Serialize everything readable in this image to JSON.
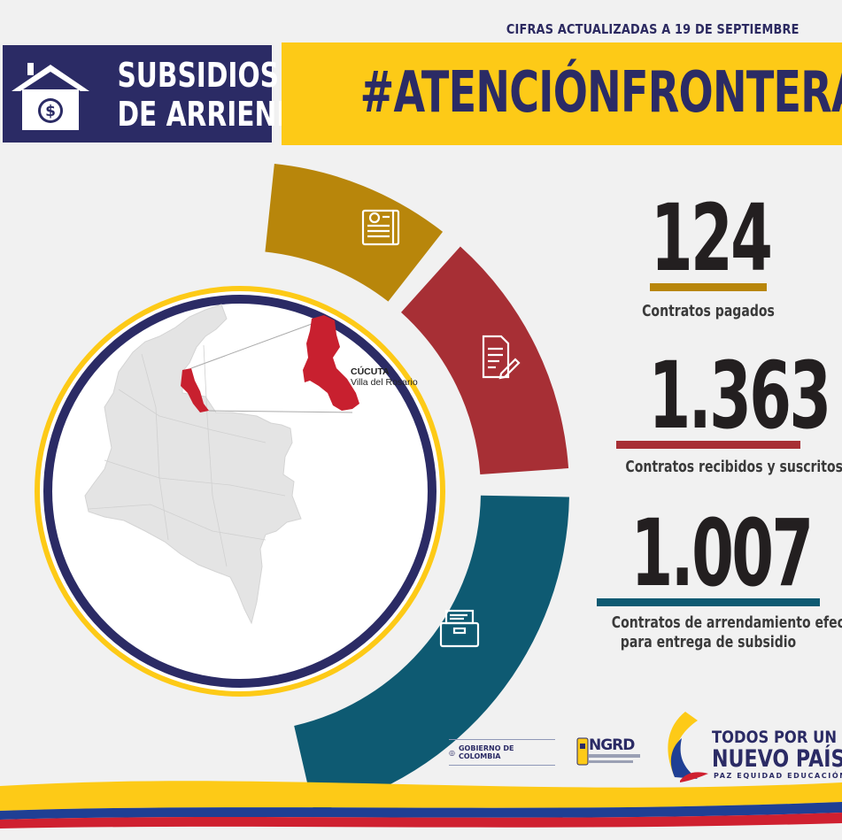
{
  "header": {
    "update_note": "CIFRAS ACTUALIZADAS A 19 DE SEPTIEMBRE",
    "title_line1": "SUBSIDIOS",
    "title_line2": "DE ARRIENDO",
    "hashtag": "#ATENCIÓNFRONTERA"
  },
  "map": {
    "city": "CÚCUTA",
    "municipality": "Villa del Rosario"
  },
  "stats": [
    {
      "value": "124",
      "label": "Contratos pagados",
      "color": "#b8860b"
    },
    {
      "value": "1.363",
      "label": "Contratos recibidos y suscritos",
      "color": "#a72f35"
    },
    {
      "value": "1.007",
      "label_line1": "Contratos de arrendamiento efectivos",
      "label_line2": "para entrega de subsidio",
      "color": "#0e5a72"
    }
  ],
  "icons": {
    "house": "house-dollar-icon",
    "segment1": "invoice-icon",
    "segment2": "document-pen-icon",
    "segment3": "archive-drawer-icon"
  },
  "footer": {
    "gobierno": "GOBIERNO DE COLOMBIA",
    "ngrd": "NGRD",
    "slogan_line1": "TODOS POR UN",
    "slogan_line2": "NUEVO PAÍS",
    "slogan_line3": "PAZ   EQUIDAD   EDUCACIÓN"
  },
  "colors": {
    "navy": "#2b2b65",
    "yellow": "#fdca17",
    "gold": "#b8860b",
    "red": "#a72f35",
    "teal": "#0e5a72",
    "flag_blue": "#1f3f94",
    "flag_red": "#cf2030"
  }
}
